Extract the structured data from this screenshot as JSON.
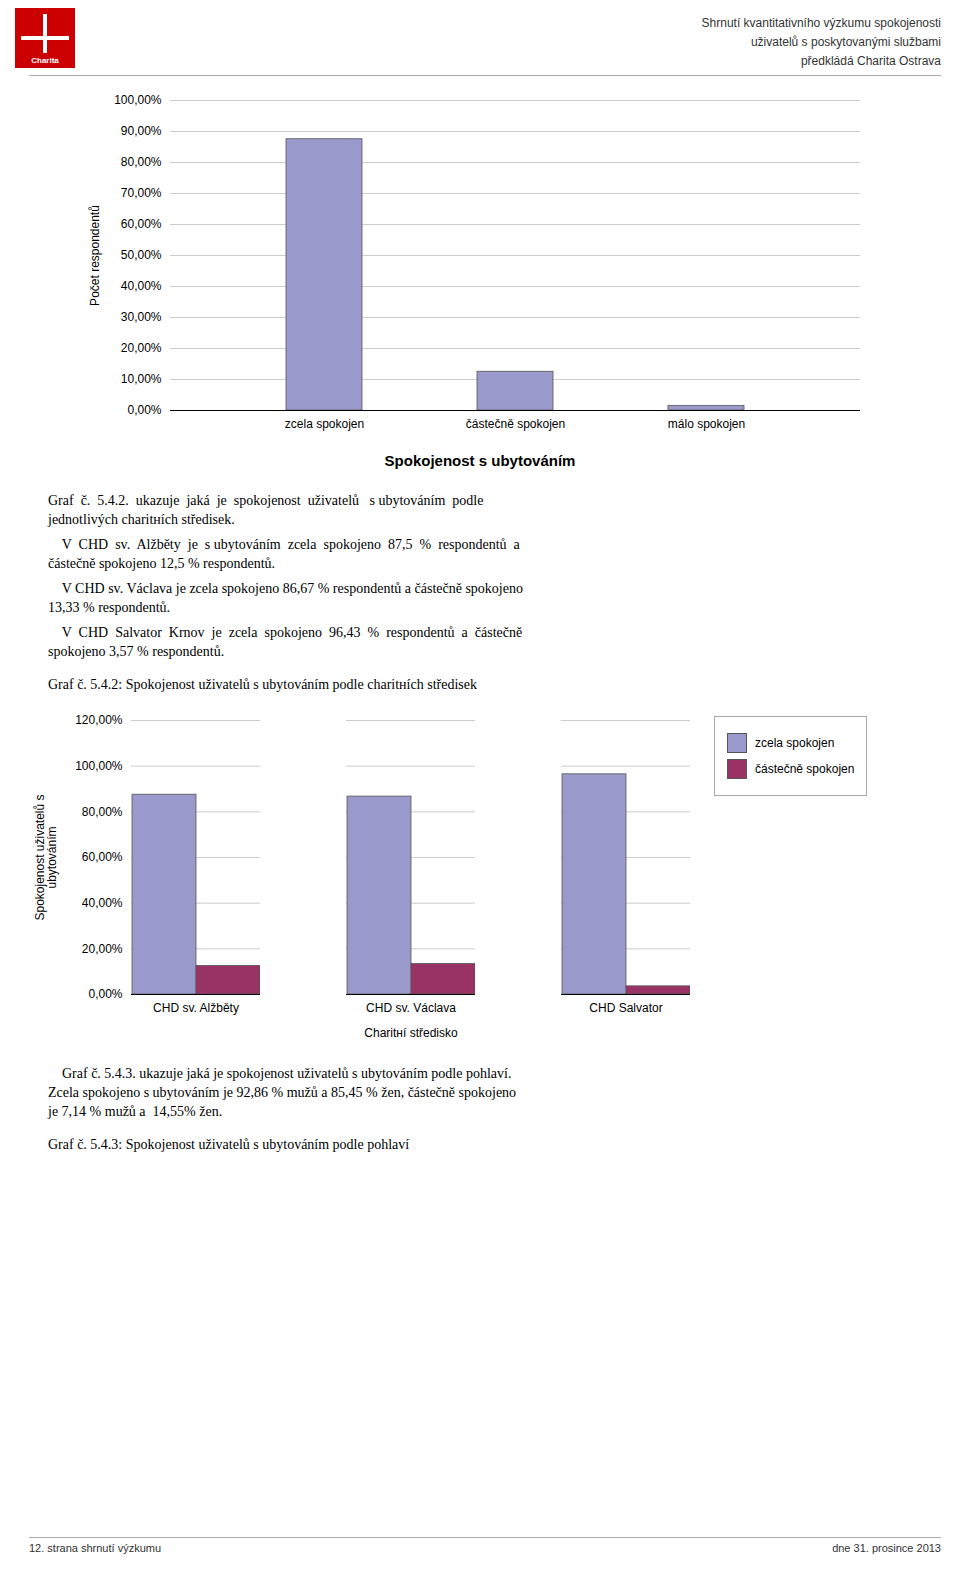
{
  "logo": "Charita",
  "header": [
    "Shrnutí kvantitativního výzkumu spokojenosti",
    "uživatelů s poskytovanými službami",
    "předkládá Charita Ostrava"
  ],
  "chart_data": [
    {
      "type": "bar",
      "title": "Spokojenost s ubytováním",
      "ylabel": "Počet respondentů",
      "categories": [
        "zcela spokojen",
        "částečně spokojen",
        "málo spokojen"
      ],
      "values": [
        87.5,
        12.5,
        1.5
      ],
      "color": "#9999cc",
      "ylim": [
        0,
        100
      ],
      "yticks": [
        {
          "value": 0,
          "label": "0,00%"
        },
        {
          "value": 10,
          "label": "10,00%"
        },
        {
          "value": 20,
          "label": "20,00%"
        },
        {
          "value": 30,
          "label": "30,00%"
        },
        {
          "value": 40,
          "label": "40,00%"
        },
        {
          "value": 50,
          "label": "50,00%"
        },
        {
          "value": 60,
          "label": "60,00%"
        },
        {
          "value": 70,
          "label": "70,00%"
        },
        {
          "value": 80,
          "label": "80,00%"
        },
        {
          "value": 90,
          "label": "90,00%"
        },
        {
          "value": 100,
          "label": "100,00%"
        }
      ],
      "grid": true
    },
    {
      "type": "bar",
      "xlabel": "Charitнí středisko",
      "ylabel": "Spokojenost uživatelů s\nubytováním",
      "categories": [
        "CHD sv. Alžběty",
        "CHD sv. Václava",
        "CHD Salvator"
      ],
      "series": [
        {
          "name": "zcela spokojen",
          "color": "#9999cc",
          "values": [
            87.5,
            86.67,
            96.43
          ]
        },
        {
          "name": "částečně spokojen",
          "color": "#993366",
          "values": [
            12.5,
            13.33,
            3.57
          ]
        }
      ],
      "ylim": [
        0,
        120
      ],
      "yticks": [
        {
          "value": 0,
          "label": "0,00%"
        },
        {
          "value": 20,
          "label": "20,00%"
        },
        {
          "value": 40,
          "label": "40,00%"
        },
        {
          "value": 60,
          "label": "60,00%"
        },
        {
          "value": 80,
          "label": "80,00%"
        },
        {
          "value": 100,
          "label": "100,00%"
        },
        {
          "value": 120,
          "label": "120,00%"
        }
      ],
      "grid": true,
      "legend": "right"
    }
  ],
  "paragraphs_1": [
    [
      "Graf  č.  5.4.2.  ukazuje  jaká  je  spokojenost  uživatelů   s ubytováním  podle",
      "jednotlivých charitнích středisek."
    ],
    [
      "    V  CHD  sv.  Alžběty  je  s ubytováním  zcela  spokojeno  87,5  %  respondentů  a",
      "částečně spokojeno 12,5 % respondentů."
    ],
    [
      "    V CHD sv. Václava je zcela spokojeno 86,67 % respondentů a částečně spokojeno",
      "13,33 % respondentů."
    ],
    [
      "    V  CHD  Salvator  Krnov  je  zcela  spokojeno  96,43  %  respondentů  a  částečně",
      "spokojeno 3,57 % respondentů."
    ]
  ],
  "caption_2": "Graf č. 5.4.2: Spokojenost uživatelů s ubytováním podle charitнích středisek",
  "paragraphs_2": [
    [
      "    Graf č. 5.4.3. ukazuje jaká je spokojenost uživatelů s ubytováním podle pohlaví.",
      "Zcela spokojeno s ubytováním je 92,86 % mužů a 85,45 % žen, částečně spokojeno",
      "je 7,14 % mužů a  14,55% žen."
    ]
  ],
  "caption_3": "Graf č. 5.4.3: Spokojenost uživatelů s ubytováním podle pohlaví",
  "footer": [
    "12. strana shrnutí výzkumu",
    "dne 31. prosince 2013"
  ]
}
